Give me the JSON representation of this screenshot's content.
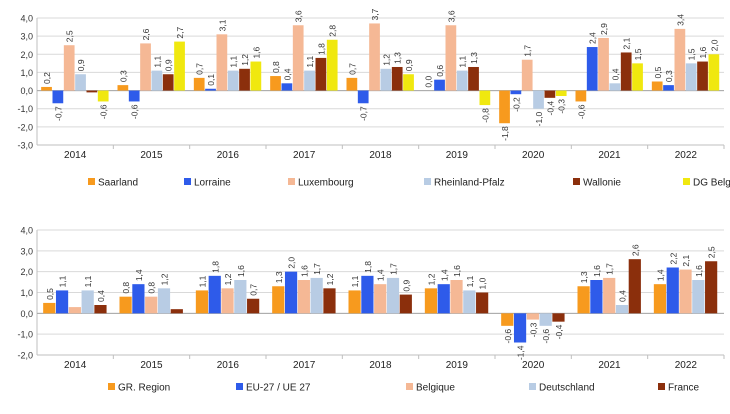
{
  "chart_data": [
    {
      "type": "bar",
      "title": "",
      "xlabel": "",
      "ylabel": "",
      "ylim": [
        -3.0,
        4.0
      ],
      "yticks": [
        "4,0",
        "3,0",
        "2,0",
        "1,0",
        "0,0",
        "-1,0",
        "-2,0",
        "-3,0"
      ],
      "ytick_values": [
        4,
        3,
        2,
        1,
        0,
        -1,
        -2,
        -3
      ],
      "categories": [
        "2014",
        "2015",
        "2016",
        "2017",
        "2018",
        "2019",
        "2020",
        "2021",
        "2022"
      ],
      "grid": true,
      "legend": "bottom",
      "series": [
        {
          "name": "Saarland",
          "color": "#F79A1E",
          "values": [
            0.2,
            0.3,
            0.7,
            0.8,
            0.7,
            0.0,
            -1.8,
            -0.6,
            0.5
          ],
          "labels": [
            "0,2",
            "0,3",
            "0,7",
            "0,8",
            "0,7",
            "0,0",
            "-1,8",
            "-0,6",
            "0,5"
          ]
        },
        {
          "name": "Lorraine",
          "color": "#2E5BEA",
          "values": [
            -0.7,
            -0.6,
            0.1,
            0.4,
            -0.7,
            0.6,
            -0.2,
            2.4,
            0.3
          ],
          "labels": [
            "-0,7",
            "-0,6",
            "0,1",
            "0,4",
            "-0,7",
            "0,6",
            "-0,2",
            "2,4",
            "0,3"
          ]
        },
        {
          "name": "Luxembourg",
          "color": "#F5B895",
          "values": [
            2.5,
            2.6,
            3.1,
            3.6,
            3.7,
            3.6,
            1.7,
            2.9,
            3.4
          ],
          "labels": [
            "2,5",
            "2,6",
            "3,1",
            "3,6",
            "3,7",
            "3,6",
            "1,7",
            "2,9",
            "3,4"
          ]
        },
        {
          "name": "Rheinland-Pfalz",
          "color": "#B8CCE4",
          "values": [
            0.9,
            1.1,
            1.1,
            1.1,
            1.2,
            1.1,
            -1.0,
            0.4,
            1.5
          ],
          "labels": [
            "0,9",
            "1,1",
            "1,1",
            "1,1",
            "1,2",
            "1,1",
            "-1,0",
            "0,4",
            "1,5"
          ]
        },
        {
          "name": "Wallonie",
          "color": "#8B2F0C",
          "values": [
            -0.1,
            0.9,
            1.2,
            1.8,
            1.3,
            1.3,
            -0.4,
            2.1,
            1.6
          ],
          "labels": [
            "",
            "0,9",
            "1,2",
            "1,8",
            "1,3",
            "1,3",
            "-0,4",
            "2,1",
            "1,6"
          ]
        },
        {
          "name": "DG Belgien",
          "color": "#F0E80F",
          "values": [
            -0.6,
            2.7,
            1.6,
            2.8,
            0.9,
            -0.8,
            -0.3,
            1.5,
            2.0
          ],
          "labels": [
            "-0,6",
            "2,7",
            "1,6",
            "2,8",
            "0,9",
            "-0,8",
            "-0,3",
            "1,5",
            "2,0"
          ]
        }
      ]
    },
    {
      "type": "bar",
      "title": "",
      "xlabel": "",
      "ylabel": "",
      "ylim": [
        -2.0,
        4.0
      ],
      "yticks": [
        "4,0",
        "3,0",
        "2,0",
        "1,0",
        "0,0",
        "-1,0",
        "-2,0"
      ],
      "ytick_values": [
        4,
        3,
        2,
        1,
        0,
        -1,
        -2
      ],
      "categories": [
        "2014",
        "2015",
        "2016",
        "2017",
        "2018",
        "2019",
        "2020",
        "2021",
        "2022"
      ],
      "grid": true,
      "legend": "bottom",
      "series": [
        {
          "name": "GR. Region",
          "color": "#F79A1E",
          "values": [
            0.5,
            0.8,
            1.1,
            1.3,
            1.1,
            1.2,
            -0.6,
            1.3,
            1.4
          ],
          "labels": [
            "0,5",
            "0,8",
            "1,1",
            "1,3",
            "1,1",
            "1,2",
            "-0,6",
            "1,3",
            "1,4"
          ]
        },
        {
          "name": "EU-27 / UE 27",
          "color": "#2E5BEA",
          "values": [
            1.1,
            1.4,
            1.8,
            2.0,
            1.8,
            1.4,
            -1.4,
            1.6,
            2.2
          ],
          "labels": [
            "1,1",
            "1,4",
            "1,8",
            "2,0",
            "1,8",
            "1,4",
            "-1,4",
            "1,6",
            "2,2"
          ]
        },
        {
          "name": "Belgique",
          "color": "#F5B895",
          "values": [
            0.3,
            0.8,
            1.2,
            1.6,
            1.4,
            1.6,
            -0.3,
            1.7,
            2.1
          ],
          "labels": [
            "",
            "0,8",
            "1,2",
            "1,6",
            "1,4",
            "1,6",
            "-0,3",
            "1,7",
            "2,1"
          ]
        },
        {
          "name": "Deutschland",
          "color": "#B8CCE4",
          "values": [
            1.1,
            1.2,
            1.6,
            1.7,
            1.7,
            1.1,
            -0.6,
            0.4,
            1.6
          ],
          "labels": [
            "1,1",
            "1,2",
            "1,6",
            "1,7",
            "1,7",
            "1,1",
            "-0,6",
            "0,4",
            "1,6"
          ]
        },
        {
          "name": "France",
          "color": "#8B2F0C",
          "values": [
            0.4,
            0.2,
            0.7,
            1.2,
            0.9,
            1.0,
            -0.4,
            2.6,
            2.5
          ],
          "labels": [
            "0,4",
            "",
            "0,7",
            "1,2",
            "0,9",
            "1,0",
            "-0,4",
            "2,6",
            "2,5"
          ]
        }
      ]
    }
  ]
}
